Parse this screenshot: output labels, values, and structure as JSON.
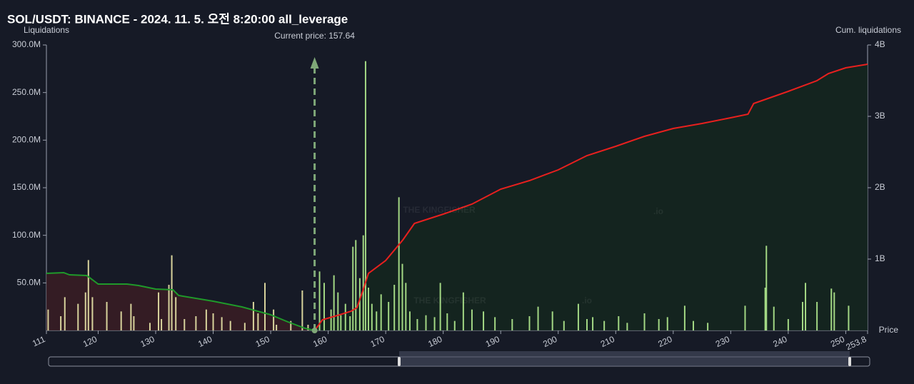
{
  "chart_data": {
    "type": "bar",
    "title": "SOL/USDT: BINANCE - 2024. 11. 5. 오전 8:20:00 all_leverage",
    "y_label": "Liquidations",
    "y2_label": "Cum. liquidations",
    "x_label": "Price",
    "current_price": 157.64,
    "current_price_label": "Current price: 157.64",
    "watermark": "THE KINGFISHER",
    "watermark_suffix": ".io",
    "xlim": [
      111,
      253.8
    ],
    "xticks": [
      111,
      120,
      130,
      140,
      150,
      160,
      170,
      180,
      190,
      200,
      210,
      220,
      230,
      240,
      250,
      253.8
    ],
    "ylim": [
      0,
      300000000
    ],
    "yticks": [
      {
        "value": 50000000,
        "label": "50.0M"
      },
      {
        "value": 100000000,
        "label": "100.0M"
      },
      {
        "value": 150000000,
        "label": "150.0M"
      },
      {
        "value": 200000000,
        "label": "200.0M"
      },
      {
        "value": 250000000,
        "label": "250.0M"
      },
      {
        "value": 300000000,
        "label": "300.0M"
      }
    ],
    "y2lim": [
      0,
      4000000000
    ],
    "y2ticks": [
      {
        "value": 1000000000,
        "label": "1B"
      },
      {
        "value": 2000000000,
        "label": "2B"
      },
      {
        "value": 3000000000,
        "label": "3B"
      },
      {
        "value": 4000000000,
        "label": "4B"
      }
    ],
    "series": [
      {
        "type": "bar",
        "color": "#d8d39c",
        "x": [
          111.3,
          113.5,
          114.2,
          116.5,
          117.8,
          118.3,
          119,
          121.5,
          124,
          125.7,
          126.2,
          129,
          130.5,
          131,
          132.3,
          132.8,
          133.5,
          135,
          137,
          138.8,
          140,
          141.5,
          143,
          145.5,
          147,
          147.8,
          149,
          150.5,
          151,
          153.5,
          155.5,
          156.5
        ],
        "values": [
          22000000,
          15000000,
          35000000,
          28000000,
          40000000,
          74000000,
          35000000,
          30000000,
          20000000,
          28000000,
          15000000,
          8000000,
          40000000,
          12000000,
          48000000,
          79000000,
          35000000,
          12000000,
          15000000,
          22000000,
          18000000,
          14000000,
          10000000,
          8000000,
          30000000,
          18000000,
          50000000,
          22000000,
          6000000,
          10000000,
          42000000,
          6000000
        ]
      },
      {
        "type": "bar",
        "color": "#a3d884",
        "x": [
          158.5,
          159.3,
          160.5,
          161,
          161.7,
          162.2,
          163,
          163.8,
          164.3,
          164.8,
          165.5,
          166.1,
          166.5,
          167,
          167.6,
          168.4,
          169.2,
          170.5,
          171.5,
          172.3,
          172.9,
          173.5,
          174.2,
          175.5,
          177,
          178.5,
          179.5,
          180.7,
          182,
          183.5,
          185,
          187,
          189,
          192,
          195,
          196.5,
          199,
          201,
          203.5,
          205,
          206,
          208,
          210.5,
          212,
          215,
          217.5,
          219,
          222,
          223.5,
          226,
          232.5,
          236,
          236.2,
          237.5,
          240,
          242.5,
          243,
          245,
          247.5,
          248,
          250.5
        ],
        "values": [
          62000000,
          50000000,
          22000000,
          58000000,
          40000000,
          16000000,
          28000000,
          15000000,
          88000000,
          95000000,
          55000000,
          100000000,
          283000000,
          45000000,
          28000000,
          20000000,
          38000000,
          30000000,
          48000000,
          140000000,
          70000000,
          50000000,
          20000000,
          12000000,
          16000000,
          14000000,
          50000000,
          18000000,
          10000000,
          40000000,
          22000000,
          20000000,
          14000000,
          12000000,
          15000000,
          25000000,
          20000000,
          10000000,
          28000000,
          12000000,
          14000000,
          10000000,
          15000000,
          8000000,
          18000000,
          12000000,
          14000000,
          26000000,
          10000000,
          8000000,
          26000000,
          45000000,
          89000000,
          25000000,
          12000000,
          30000000,
          50000000,
          30000000,
          44000000,
          40000000,
          26000000
        ]
      },
      {
        "type": "line",
        "axis": "y2",
        "color": "#1f9a2a",
        "fill": "#3a1d24",
        "x": [
          111,
          114,
          115,
          118,
          120,
          125,
          127,
          130,
          133,
          134,
          140,
          145,
          150,
          153,
          156,
          157.64
        ],
        "values": [
          800000000,
          810000000,
          780000000,
          770000000,
          650000000,
          650000000,
          630000000,
          580000000,
          570000000,
          490000000,
          410000000,
          330000000,
          220000000,
          120000000,
          30000000,
          0
        ]
      },
      {
        "type": "line",
        "axis": "y2",
        "color": "#e8201e",
        "fill": "#14271f",
        "x": [
          157.64,
          159,
          162,
          164,
          165,
          166,
          167,
          170,
          173,
          175,
          180,
          185,
          190,
          195,
          200,
          205,
          210,
          215,
          220,
          225,
          230,
          233,
          234,
          240,
          245,
          247,
          250,
          253.8
        ],
        "values": [
          0,
          150000000,
          220000000,
          270000000,
          320000000,
          550000000,
          800000000,
          980000000,
          1270000000,
          1500000000,
          1630000000,
          1770000000,
          1980000000,
          2100000000,
          2250000000,
          2450000000,
          2580000000,
          2720000000,
          2830000000,
          2900000000,
          2980000000,
          3030000000,
          3180000000,
          3350000000,
          3500000000,
          3600000000,
          3680000000,
          3730000000
        ]
      }
    ]
  }
}
